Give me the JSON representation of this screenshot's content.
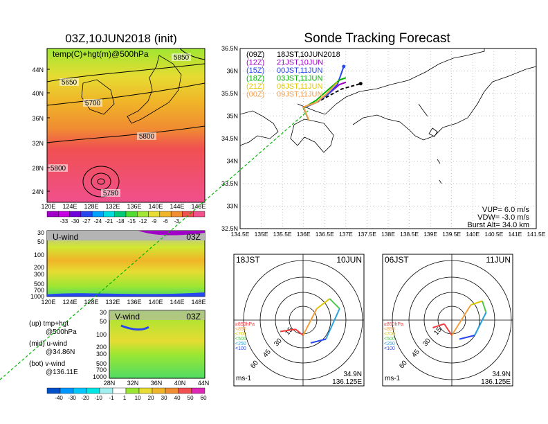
{
  "page_title_left": "03Z,10JUN2018 (init)",
  "page_title_right": "Sonde Tracking Forecast",
  "map_panel": {
    "label": "temp(C)+hgt(m)@500hPa",
    "lat_labels": [
      "44N",
      "40N",
      "36N",
      "32N",
      "28N",
      "24N"
    ],
    "lon_labels": [
      "120E",
      "124E",
      "128E",
      "132E",
      "136E",
      "140E",
      "144E",
      "148E"
    ],
    "contour_labels": [
      "5850",
      "5650",
      "5700",
      "5800",
      "5800",
      "5750"
    ],
    "colorbar_labels": [
      "-33",
      "-30",
      "-27",
      "-24",
      "-21",
      "-18",
      "-15",
      "-12",
      "-9",
      "-6",
      "-3"
    ],
    "colorbar_colors": [
      "#a000c8",
      "#c800e6",
      "#6e00dc",
      "#2846f0",
      "#00a0ff",
      "#00dcdc",
      "#00c878",
      "#50dc32",
      "#a0e632",
      "#e6dc32",
      "#f0b428",
      "#f08c32",
      "#f05050",
      "#f0508c"
    ]
  },
  "uwind_panel": {
    "label": "U-wind",
    "time": "03Z",
    "p_levels": [
      "30",
      "50",
      "100",
      "200",
      "300",
      "500",
      "700",
      "1000"
    ],
    "lon_labels": [
      "120E",
      "124E",
      "128E",
      "132E",
      "136E",
      "140E",
      "144E",
      "148E"
    ]
  },
  "vwind_panel": {
    "label": "V-wind",
    "time": "03Z",
    "p_levels": [
      "30",
      "50",
      "100",
      "200",
      "300",
      "500",
      "700",
      "1000"
    ],
    "lat_labels": [
      "28N",
      "32N",
      "36N",
      "40N",
      "44N"
    ],
    "colorbar_labels": [
      "-40",
      "-30",
      "-20",
      "-10",
      "-1",
      "1",
      "10",
      "20",
      "30",
      "40",
      "50",
      "60"
    ],
    "colorbar_colors": [
      "#0050c8",
      "#0096ff",
      "#00c8ff",
      "#00e6e6",
      "#a0f0f0",
      "#ffffff",
      "#9be632",
      "#e6dc32",
      "#f0b428",
      "#f08c32",
      "#f05050",
      "#dc28b4"
    ]
  },
  "notes": {
    "up": "(up) tmp+hgt",
    "up2": "@500hPa",
    "mid": "(mid) u-wind",
    "mid2": "@34.86N",
    "bot": "(bot) v-wind",
    "bot2": "@136.11E"
  },
  "tracking": {
    "legend": [
      {
        "run": "(09Z)",
        "launch": "18JST,10JUN2018",
        "color": "#000000"
      },
      {
        "run": "(12Z)",
        "launch": "21JST,10JUN",
        "color": "#a000c8"
      },
      {
        "run": "(15Z)",
        "launch": "00JST,11JUN",
        "color": "#2846f0"
      },
      {
        "run": "(18Z)",
        "launch": "03JST,11JUN",
        "color": "#00b400"
      },
      {
        "run": "(21Z)",
        "launch": "06JST,11JUN",
        "color": "#e6c800"
      },
      {
        "run": "(00Z)",
        "launch": "09JST,11JUN",
        "color": "#f0a050"
      }
    ],
    "lat_labels": [
      "36.5N",
      "36N",
      "35.5N",
      "35N",
      "34.5N",
      "34N",
      "33.5N",
      "33N",
      "32.5N"
    ],
    "lon_labels": [
      "134.5E",
      "135E",
      "135.5E",
      "136E",
      "136.5E",
      "137E",
      "137.5E",
      "138E",
      "138.5E",
      "139E",
      "139.5E",
      "140E",
      "140.5E",
      "141E",
      "141.5E"
    ],
    "params": [
      "VUP= 6.0 m/s",
      "VDW= -3.0 m/s",
      "Burst Alt= 34.0 km"
    ]
  },
  "hodographs": [
    {
      "left_label": "18JST",
      "right_label": "10JUN",
      "lat": "34.9N",
      "lon": "136.125E",
      "unit": "ms-1",
      "ring_labels": [
        "15",
        "30",
        "45",
        "60"
      ]
    },
    {
      "left_label": "06JST",
      "right_label": "11JUN",
      "lat": "34.9N",
      "lon": "136.125E",
      "unit": "ms-1",
      "ring_labels": [
        "15",
        "30",
        "45",
        "60"
      ]
    }
  ],
  "hodo_legend": [
    {
      "label": "≥850hPa",
      "color": "#f03c3c"
    },
    {
      "label": "<850",
      "color": "#f0a03c"
    },
    {
      "label": "<700",
      "color": "#dcc800"
    },
    {
      "label": "<500",
      "color": "#50c850"
    },
    {
      "label": "<250",
      "color": "#28a0dc"
    },
    {
      "label": "<100",
      "color": "#2846f0"
    }
  ],
  "chart_data": {
    "type": "line",
    "title": "Sonde Tracking Forecast",
    "xlabel": "",
    "ylabel": "",
    "xlim": [
      134.5,
      141.5
    ],
    "ylim": [
      32.5,
      36.5
    ],
    "launch_point": {
      "lon": 136.125,
      "lat": 34.9
    },
    "series": [
      {
        "name": "(09Z) 18JST,10JUN2018",
        "color": "#000000",
        "lon": [
          136.125,
          136.0,
          136.3,
          136.6,
          136.9,
          137.2,
          137.35
        ],
        "lat": [
          34.9,
          35.2,
          35.3,
          35.45,
          35.6,
          35.68,
          35.72
        ]
      },
      {
        "name": "(12Z) 21JST,10JUN",
        "color": "#a000c8",
        "lon": [
          136.125,
          136.0,
          136.3,
          136.6,
          136.85,
          137.0
        ],
        "lat": [
          34.9,
          35.18,
          35.3,
          35.5,
          35.7,
          35.75
        ]
      },
      {
        "name": "(15Z) 00JST,11JUN",
        "color": "#2846f0",
        "lon": [
          136.125,
          136.0,
          136.3,
          136.6,
          136.8,
          136.95
        ],
        "lat": [
          34.9,
          35.18,
          35.3,
          35.5,
          35.7,
          36.1
        ]
      },
      {
        "name": "(18Z) 03JST,11JUN",
        "color": "#00b400",
        "lon": [
          136.125,
          136.0,
          136.3,
          136.6,
          136.85,
          137.0
        ],
        "lat": [
          34.9,
          35.18,
          35.35,
          35.6,
          35.8,
          35.85
        ]
      },
      {
        "name": "(21Z) 06JST,11JUN",
        "color": "#e6c800",
        "lon": [
          136.125,
          136.0,
          136.3,
          136.55,
          136.8
        ],
        "lat": [
          34.9,
          35.2,
          35.3,
          35.5,
          35.75
        ]
      },
      {
        "name": "(00Z) 09JST,11JUN",
        "color": "#f0a050",
        "lon": [
          136.125,
          136.0,
          136.3,
          136.5,
          136.75
        ],
        "lat": [
          34.9,
          35.2,
          35.3,
          35.45,
          35.7
        ]
      }
    ]
  }
}
